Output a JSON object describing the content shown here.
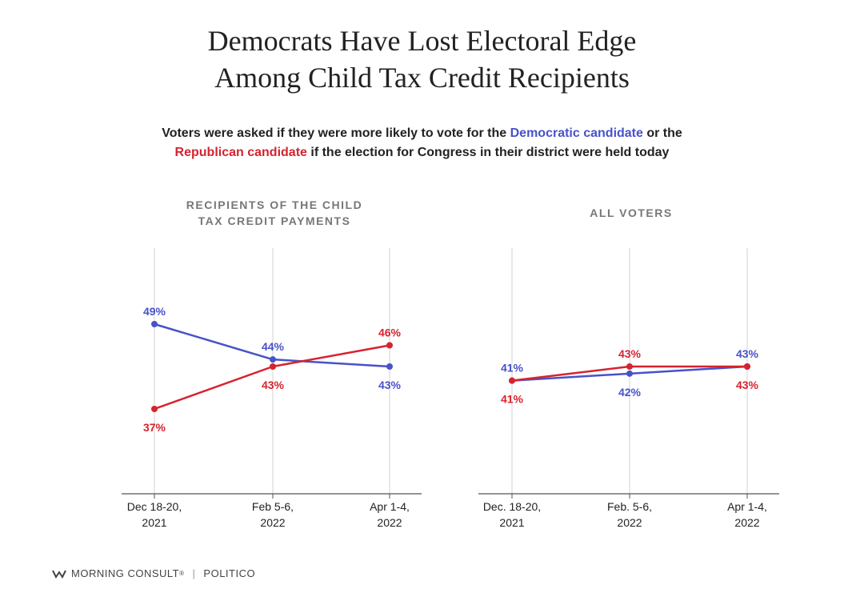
{
  "title": {
    "line1": "Democrats Have Lost Electoral Edge",
    "line2": "Among Child Tax Credit Recipients"
  },
  "subtitle": {
    "part1": "Voters were asked if they were more likely to vote for the ",
    "dem_label": "Democratic candidate",
    "part2": " or the",
    "rep_label": "Republican candidate",
    "part3": " if the election for Congress in their district were held today"
  },
  "colors": {
    "democratic": "#4852c9",
    "republican": "#d6232e",
    "grid": "#d9d9d9",
    "axis": "#555555"
  },
  "chart_data": [
    {
      "type": "line",
      "title": [
        "RECIPIENTS OF THE CHILD",
        "TAX CREDIT PAYMENTS"
      ],
      "categories": [
        [
          "Dec 18-20,",
          "2021"
        ],
        [
          "Feb 5-6,",
          "2022"
        ],
        [
          "Apr 1-4,",
          "2022"
        ]
      ],
      "ylim": [
        25,
        60
      ],
      "grid": "vertical",
      "series": [
        {
          "key": "democratic",
          "values": [
            49,
            44,
            43
          ],
          "labels": [
            "49%",
            "44%",
            "43%"
          ],
          "label_pos": [
            "above",
            "above",
            "below"
          ]
        },
        {
          "key": "republican",
          "values": [
            37,
            43,
            46
          ],
          "labels": [
            "37%",
            "43%",
            "46%"
          ],
          "label_pos": [
            "below",
            "below",
            "above"
          ]
        }
      ]
    },
    {
      "type": "line",
      "title": [
        "ALL VOTERS"
      ],
      "categories": [
        [
          "Dec. 18-20,",
          "2021"
        ],
        [
          "Feb. 5-6,",
          "2022"
        ],
        [
          "Apr 1-4,",
          "2022"
        ]
      ],
      "ylim": [
        25,
        60
      ],
      "grid": "vertical",
      "series": [
        {
          "key": "democratic",
          "values": [
            41,
            42,
            43
          ],
          "labels": [
            "41%",
            "42%",
            "43%"
          ],
          "label_pos": [
            "above",
            "below",
            "above"
          ]
        },
        {
          "key": "republican",
          "values": [
            41,
            43,
            43
          ],
          "labels": [
            "41%",
            "43%",
            "43%"
          ],
          "label_pos": [
            "below",
            "above",
            "below"
          ]
        }
      ]
    }
  ],
  "footer": {
    "source1": "MORNING CONSULT",
    "trademark": "®",
    "separator": "|",
    "source2": "POLITICO",
    "logo_icon": "morning-consult-logo-icon"
  }
}
